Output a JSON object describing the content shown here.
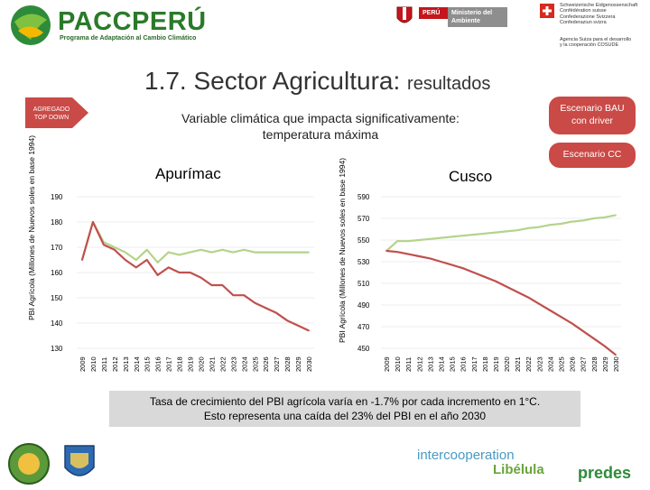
{
  "header": {
    "logo_main": "PACCPERÚ",
    "logo_sub": "Programa de Adaptación al Cambio Climático",
    "ministry_label": "PERÚ",
    "ministry_name": "Ministerio del Ambiente",
    "swiss_lines": [
      "Schweizerische Eidgenossenschaft",
      "Confédération suisse",
      "Confederazione Svizzera",
      "Confederaziun svizra"
    ],
    "swiss_agency": [
      "Agencia Suiza para el desarrollo",
      "y la cooperación COSUDE"
    ]
  },
  "slide": {
    "title": "1.7. Sector Agricultura:",
    "title_suffix": "resultados",
    "subtitle_lines": [
      "Variable climática que impacta significativamente:",
      "temperatura máxima"
    ],
    "top_down_lines": [
      "AGREGADO",
      "TOP DOWN"
    ],
    "scenario_bau_lines": [
      "Escenario BAU",
      "con driver"
    ],
    "scenario_cc": "Escenario CC",
    "note_lines": [
      "Tasa de crecimiento del PBI agrícola varía en -1.7% por cada incremento en 1°C.",
      "Esto representa una caída del 23% del PBI en el año 2030"
    ]
  },
  "footer": {
    "logo_left_1": "Gobierno Regional Cusco",
    "logo_left_2": "Gobierno Regional Apurímac",
    "intercooperation": "intercooperation",
    "libelula": "Libélula",
    "predes": "predes"
  },
  "colors": {
    "bau": "#b5d38a",
    "cc": "#c0504d",
    "scenario_bau_box": "#c94a46",
    "scenario_cc_box": "#c94a46",
    "top_down_box": "#c94a46",
    "grid": "#bfbfbf"
  },
  "chart_data": [
    {
      "type": "line",
      "title": "Apurímac",
      "ylabel": "PBI Agrícola (Millones de Nuevos soles en base 1994)",
      "ylim": [
        130,
        190
      ],
      "yticks": [
        130,
        140,
        150,
        160,
        170,
        180,
        190
      ],
      "x": [
        "2009",
        "2010",
        "2011",
        "2012",
        "2013",
        "2014",
        "2015",
        "2016",
        "2017",
        "2018",
        "2019",
        "2020",
        "2021",
        "2022",
        "2023",
        "2024",
        "2025",
        "2026",
        "2027",
        "2028",
        "2029",
        "2030"
      ],
      "series": [
        {
          "key": "bau",
          "values": [
            165,
            180,
            172,
            170,
            168,
            165,
            169,
            164,
            168,
            167,
            168,
            169,
            168,
            169,
            168,
            169,
            168,
            168,
            168,
            168,
            168,
            168
          ]
        },
        {
          "key": "cc",
          "values": [
            165,
            180,
            171,
            169,
            165,
            162,
            165,
            159,
            162,
            160,
            160,
            158,
            155,
            155,
            151,
            151,
            148,
            146,
            144,
            141,
            139,
            137
          ]
        }
      ]
    },
    {
      "type": "line",
      "title": "Cusco",
      "ylabel": "PBI Agrícola (Millones de Nuevos soles en base 1994)",
      "ylim": [
        450,
        590
      ],
      "yticks": [
        450,
        470,
        490,
        510,
        530,
        550,
        570,
        590
      ],
      "x": [
        "2009",
        "2010",
        "2011",
        "2012",
        "2013",
        "2014",
        "2015",
        "2016",
        "2017",
        "2018",
        "2019",
        "2020",
        "2021",
        "2022",
        "2023",
        "2024",
        "2025",
        "2026",
        "2027",
        "2028",
        "2029",
        "2030"
      ],
      "series": [
        {
          "key": "bau",
          "values": [
            540,
            549,
            549,
            550,
            551,
            552,
            553,
            554,
            555,
            556,
            557,
            558,
            559,
            561,
            562,
            564,
            565,
            567,
            568,
            570,
            571,
            573
          ]
        },
        {
          "key": "cc",
          "values": [
            540,
            539,
            537,
            535,
            533,
            530,
            527,
            524,
            520,
            516,
            512,
            507,
            502,
            497,
            491,
            485,
            479,
            473,
            466,
            459,
            452,
            444
          ]
        }
      ]
    }
  ]
}
